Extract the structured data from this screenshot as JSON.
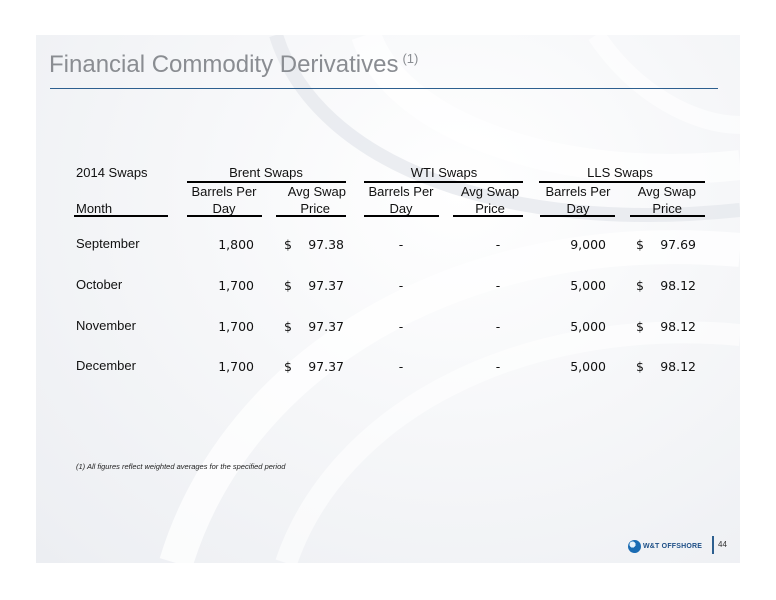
{
  "title": "Financial Commodity Derivatives",
  "title_ref": "(1)",
  "table": {
    "top_left": "2014 Swaps",
    "groups": [
      "Brent Swaps",
      "WTI Swaps",
      "LLS Swaps"
    ],
    "col_labels": {
      "month": "Month",
      "bpd_line1": "Barrels Per",
      "bpd_line2": "Day",
      "price_line1": "Avg Swap",
      "price_line2": "Price"
    },
    "currency": "$",
    "rows": [
      {
        "month": "September",
        "brent_bpd": "1,800",
        "brent_price": "97.38",
        "wti_bpd": "-",
        "wti_price": "-",
        "lls_bpd": "9,000",
        "lls_price": "97.69"
      },
      {
        "month": "October",
        "brent_bpd": "1,700",
        "brent_price": "97.37",
        "wti_bpd": "-",
        "wti_price": "-",
        "lls_bpd": "5,000",
        "lls_price": "98.12"
      },
      {
        "month": "November",
        "brent_bpd": "1,700",
        "brent_price": "97.37",
        "wti_bpd": "-",
        "wti_price": "-",
        "lls_bpd": "5,000",
        "lls_price": "98.12"
      },
      {
        "month": "December",
        "brent_bpd": "1,700",
        "brent_price": "97.37",
        "wti_bpd": "-",
        "wti_price": "-",
        "lls_bpd": "5,000",
        "lls_price": "98.12"
      }
    ]
  },
  "footnote": "(1) All figures reflect weighted averages for the specified period",
  "logo_text": "W&T OFFSHORE",
  "page_number": "44",
  "colors": {
    "title": "#8a8d92",
    "accent": "#2d5f8f",
    "logo": "#1d4f86"
  }
}
